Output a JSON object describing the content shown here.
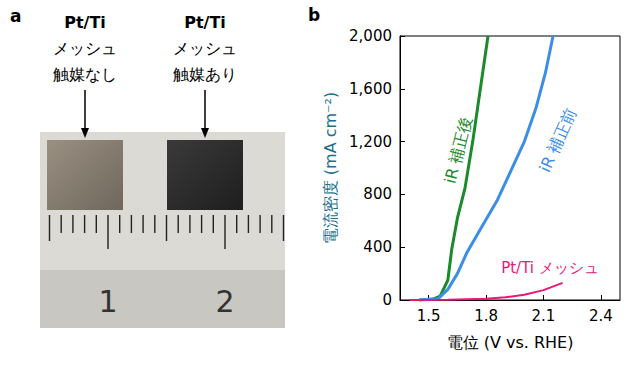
{
  "chart_data": {
    "type": "line",
    "panel_label": "b",
    "x_label": "電位 (V vs. RHE)",
    "y_label": "電流密度 (mA cm⁻²)",
    "xlim": [
      1.35,
      2.5
    ],
    "xticks": [
      1.5,
      1.8,
      2.1,
      2.4
    ],
    "ylim": [
      0,
      2000
    ],
    "yticks": [
      0,
      400,
      800,
      1200,
      1600,
      2000
    ],
    "grid": false,
    "series": [
      {
        "name": "iR 補正後",
        "color": "#1a8a2a",
        "x": [
          1.45,
          1.52,
          1.56,
          1.6,
          1.62,
          1.65,
          1.69,
          1.73,
          1.77,
          1.81
        ],
        "values": [
          0,
          5,
          30,
          150,
          380,
          620,
          850,
          1200,
          1600,
          2000
        ]
      },
      {
        "name": "iR 補正前",
        "color": "#3a8ee6",
        "x": [
          1.45,
          1.55,
          1.6,
          1.65,
          1.7,
          1.78,
          1.86,
          1.93,
          2.0,
          2.06,
          2.11,
          2.15
        ],
        "values": [
          0,
          10,
          80,
          200,
          360,
          560,
          760,
          980,
          1200,
          1450,
          1720,
          2000
        ]
      },
      {
        "name": "Pt/Ti メッシュ",
        "color": "#e6197a",
        "x": [
          1.4,
          1.6,
          1.8,
          1.9,
          2.0,
          2.1,
          2.2
        ],
        "values": [
          0,
          2,
          10,
          20,
          40,
          75,
          130
        ]
      }
    ]
  },
  "photo": {
    "panel_label": "a",
    "samples": [
      {
        "lines": [
          "Pt/Ti",
          "メッシュ",
          "触媒なし"
        ]
      },
      {
        "lines": [
          "Pt/Ti",
          "メッシュ",
          "触媒あり"
        ]
      }
    ],
    "ruler_labels": [
      "1",
      "2"
    ]
  }
}
